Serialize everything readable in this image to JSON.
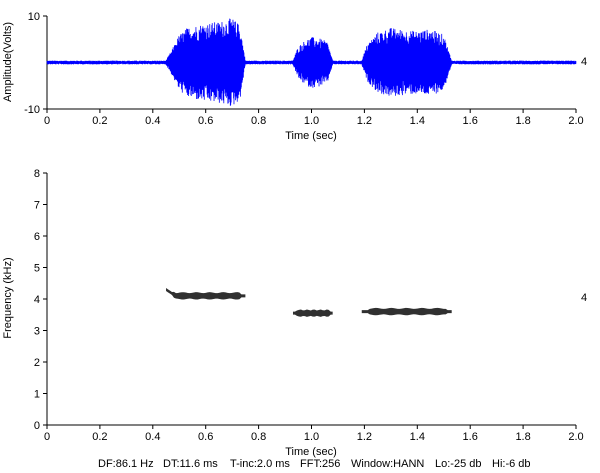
{
  "chart_data": [
    {
      "type": "line",
      "name": "waveform",
      "xlabel": "Time (sec)",
      "ylabel": "Amplitude(Volts)",
      "xlim": [
        0,
        2.0
      ],
      "ylim": [
        -10,
        10
      ],
      "xticks": [
        "0",
        "0.2",
        "0.4",
        "0.6",
        "0.8",
        "1.0",
        "1.2",
        "1.4",
        "1.6",
        "1.8",
        "2.0"
      ],
      "yticks": [
        "-10",
        "10"
      ],
      "right_label": "4",
      "color": "#0000ff",
      "baseline_amplitude": 0.4,
      "segments": [
        {
          "start": 0.45,
          "end": 0.75,
          "peak": 9.6,
          "env": [
            [
              0.45,
              0.5
            ],
            [
              0.47,
              2.5
            ],
            [
              0.5,
              6.0
            ],
            [
              0.53,
              7.5
            ],
            [
              0.56,
              8.0
            ],
            [
              0.6,
              8.5
            ],
            [
              0.65,
              8.8
            ],
            [
              0.7,
              9.6
            ],
            [
              0.73,
              8.0
            ],
            [
              0.75,
              0.5
            ]
          ]
        },
        {
          "start": 0.93,
          "end": 1.08,
          "peak": 5.5,
          "env": [
            [
              0.93,
              0.5
            ],
            [
              0.95,
              3.5
            ],
            [
              0.98,
              5.0
            ],
            [
              1.0,
              5.5
            ],
            [
              1.03,
              5.2
            ],
            [
              1.06,
              4.5
            ],
            [
              1.08,
              0.5
            ]
          ]
        },
        {
          "start": 1.19,
          "end": 1.53,
          "peak": 7.5,
          "env": [
            [
              1.19,
              0.5
            ],
            [
              1.21,
              4.0
            ],
            [
              1.25,
              6.5
            ],
            [
              1.3,
              7.5
            ],
            [
              1.35,
              7.0
            ],
            [
              1.4,
              6.8
            ],
            [
              1.45,
              7.2
            ],
            [
              1.5,
              6.0
            ],
            [
              1.53,
              0.5
            ]
          ]
        }
      ]
    },
    {
      "type": "heatmap",
      "name": "spectrogram",
      "xlabel": "Time (sec)",
      "ylabel": "Frequency (kHz)",
      "xlim": [
        0,
        2.0
      ],
      "ylim": [
        0,
        8
      ],
      "xticks": [
        "0",
        "0.2",
        "0.4",
        "0.6",
        "0.8",
        "1.0",
        "1.2",
        "1.4",
        "1.6",
        "1.8",
        "2.0"
      ],
      "yticks": [
        "0",
        "1",
        "2",
        "3",
        "4",
        "5",
        "6",
        "7",
        "8"
      ],
      "right_label": "4",
      "bands": [
        {
          "start": 0.45,
          "end": 0.75,
          "freq_start": 4.3,
          "freq": 4.1
        },
        {
          "start": 0.93,
          "end": 1.08,
          "freq_start": 3.55,
          "freq": 3.55
        },
        {
          "start": 1.19,
          "end": 1.53,
          "freq_start": 3.6,
          "freq": 3.6
        }
      ]
    }
  ],
  "footer": {
    "df": "DF:86.1 Hz",
    "dt": "DT:11.6 ms",
    "tinc": "T-inc:2.0 ms",
    "fft": "FFT:256",
    "window": "Window:HANN",
    "lo": "Lo:-25 db",
    "hi": "Hi:-6 db"
  }
}
